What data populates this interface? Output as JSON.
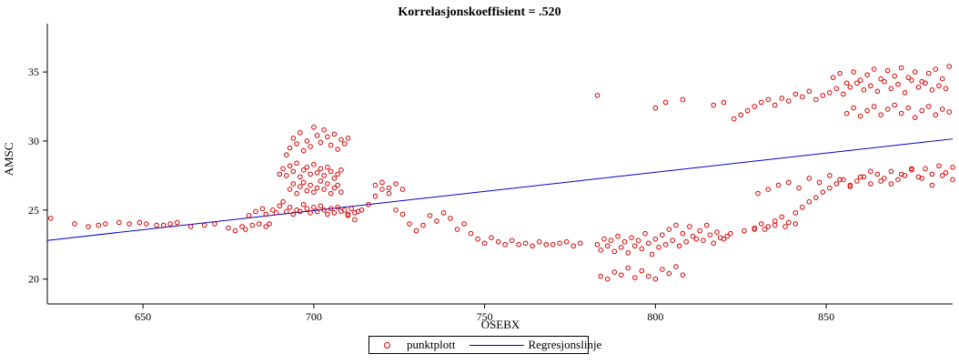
{
  "chart_data": {
    "type": "scatter",
    "title": "Korrelasjonskoeffisient = .520",
    "xlabel": "OSEBX",
    "ylabel": "AMSC",
    "xlim": [
      622,
      887
    ],
    "ylim": [
      18.2,
      38.5
    ],
    "xticks": [
      650,
      700,
      750,
      800,
      850
    ],
    "yticks": [
      20,
      25,
      30,
      35
    ],
    "grid": false,
    "legend_position": "bottom-center",
    "series": [
      {
        "name": "punktplott",
        "kind": "scatter",
        "color": "#d40000",
        "marker": "circle",
        "x": [
          623,
          630,
          634,
          637,
          639,
          643,
          646,
          649,
          651,
          654,
          656,
          658,
          660,
          664,
          668,
          671,
          675,
          677,
          679,
          680,
          682,
          684,
          686,
          687,
          681,
          683,
          685,
          686,
          688,
          689,
          690,
          691,
          692,
          693,
          694,
          695,
          696,
          697,
          698,
          699,
          700,
          701,
          702,
          703,
          704,
          705,
          706,
          707,
          708,
          709,
          710,
          711,
          712,
          713,
          690,
          691,
          692,
          693,
          694,
          695,
          696,
          697,
          698,
          699,
          700,
          701,
          702,
          703,
          704,
          705,
          706,
          707,
          708,
          692,
          693,
          694,
          695,
          696,
          697,
          698,
          699,
          700,
          701,
          702,
          703,
          704,
          705,
          706,
          707,
          708,
          709,
          710,
          693,
          694,
          695,
          696,
          697,
          698,
          699,
          700,
          701,
          702,
          703,
          704,
          705,
          706,
          707,
          708,
          710,
          712,
          714,
          716,
          718,
          720,
          722,
          724,
          726,
          728,
          730,
          732,
          734,
          736,
          738,
          740,
          742,
          744,
          746,
          748,
          750,
          752,
          754,
          756,
          758,
          760,
          762,
          764,
          766,
          768,
          770,
          772,
          774,
          776,
          778,
          718,
          720,
          722,
          724,
          726,
          783,
          784,
          785,
          786,
          787,
          788,
          789,
          790,
          791,
          792,
          793,
          794,
          795,
          796,
          797,
          798,
          799,
          800,
          801,
          802,
          803,
          804,
          805,
          806,
          807,
          808,
          809,
          810,
          811,
          812,
          813,
          814,
          815,
          816,
          817,
          818,
          819,
          820,
          821,
          822,
          784,
          786,
          788,
          790,
          792,
          794,
          796,
          798,
          800,
          802,
          804,
          806,
          808,
          783,
          800,
          803,
          808,
          817,
          820,
          823,
          825,
          827,
          829,
          831,
          833,
          835,
          837,
          839,
          841,
          843,
          845,
          847,
          849,
          851,
          853,
          855,
          857,
          859,
          861,
          863,
          865,
          867,
          869,
          871,
          873,
          875,
          877,
          879,
          881,
          883,
          885,
          852,
          854,
          856,
          858,
          860,
          862,
          864,
          866,
          868,
          870,
          872,
          874,
          876,
          878,
          880,
          882,
          884,
          886,
          856,
          858,
          860,
          862,
          864,
          866,
          868,
          870,
          872,
          874,
          876,
          878,
          880,
          882,
          884,
          886,
          829,
          831,
          833,
          835,
          837,
          839,
          841,
          843,
          845,
          847,
          849,
          851,
          853,
          855,
          857,
          859,
          861,
          863,
          865,
          867,
          869,
          871,
          873,
          875,
          877,
          879,
          881,
          883,
          885,
          887,
          830,
          833,
          836,
          839,
          842,
          845,
          848,
          851,
          854,
          857,
          860,
          863,
          866,
          869,
          872,
          875,
          878,
          881,
          884,
          887,
          826,
          829,
          832,
          835,
          838,
          841
        ],
        "y": [
          24.4,
          24.0,
          23.8,
          23.9,
          24.0,
          24.1,
          24.0,
          24.1,
          24.0,
          23.9,
          23.9,
          24.0,
          24.1,
          23.8,
          23.9,
          24.0,
          23.7,
          23.5,
          23.8,
          23.6,
          23.9,
          24.0,
          23.8,
          24.0,
          24.6,
          24.9,
          25.1,
          24.7,
          25.0,
          24.8,
          25.3,
          25.6,
          24.9,
          25.2,
          24.7,
          25.0,
          24.9,
          25.4,
          25.1,
          24.8,
          25.2,
          24.9,
          25.3,
          25.0,
          24.7,
          25.1,
          24.8,
          25.2,
          24.9,
          25.0,
          24.7,
          25.1,
          24.8,
          24.9,
          27.6,
          28.0,
          27.5,
          28.2,
          27.8,
          28.4,
          27.4,
          27.9,
          28.1,
          27.6,
          28.3,
          27.7,
          28.0,
          27.5,
          28.1,
          27.8,
          27.3,
          27.6,
          27.9,
          29.0,
          29.5,
          30.2,
          29.8,
          30.6,
          29.3,
          30.0,
          29.6,
          31.0,
          30.4,
          29.9,
          30.8,
          30.3,
          29.7,
          30.5,
          29.4,
          30.1,
          29.8,
          30.2,
          26.5,
          26.9,
          26.2,
          26.7,
          27.0,
          26.4,
          26.8,
          26.3,
          26.6,
          27.1,
          26.5,
          26.9,
          26.2,
          26.6,
          26.8,
          26.3,
          24.6,
          24.3,
          25.0,
          25.4,
          26.0,
          26.5,
          26.2,
          25.0,
          24.7,
          24.0,
          23.5,
          23.9,
          24.6,
          24.2,
          24.8,
          24.4,
          23.6,
          24.0,
          23.3,
          22.9,
          22.6,
          23.0,
          22.7,
          22.5,
          22.8,
          22.5,
          22.6,
          22.4,
          22.7,
          22.5,
          22.5,
          22.6,
          22.7,
          22.4,
          22.6,
          26.8,
          27.0,
          26.6,
          26.9,
          26.5,
          22.5,
          22.1,
          22.9,
          22.4,
          22.8,
          22.0,
          23.1,
          22.3,
          22.7,
          21.9,
          23.0,
          22.4,
          22.8,
          22.2,
          23.3,
          22.6,
          21.8,
          22.9,
          22.3,
          23.2,
          22.5,
          23.6,
          22.8,
          23.9,
          22.4,
          23.3,
          22.7,
          23.8,
          23.1,
          22.9,
          23.5,
          22.8,
          23.9,
          23.2,
          22.6,
          23.4,
          23.0,
          22.9,
          23.1,
          23.3,
          20.2,
          20.0,
          20.5,
          20.3,
          20.8,
          20.1,
          20.6,
          20.2,
          20.0,
          20.7,
          20.4,
          20.9,
          20.3,
          33.3,
          32.4,
          32.8,
          33.0,
          32.6,
          32.8,
          31.6,
          31.9,
          32.2,
          32.5,
          32.8,
          33.0,
          32.6,
          33.1,
          32.9,
          33.4,
          33.2,
          33.6,
          33.0,
          33.3,
          33.5,
          33.8,
          33.4,
          33.9,
          34.2,
          33.7,
          34.0,
          33.6,
          34.3,
          33.8,
          34.1,
          33.5,
          34.4,
          33.9,
          34.2,
          33.7,
          34.0,
          33.8,
          34.6,
          34.9,
          34.2,
          35.0,
          34.4,
          34.8,
          35.2,
          34.5,
          35.1,
          34.7,
          35.3,
          34.6,
          35.0,
          34.3,
          34.9,
          35.2,
          34.5,
          35.4,
          32.0,
          32.4,
          31.8,
          32.2,
          32.5,
          31.9,
          32.3,
          32.6,
          32.0,
          32.4,
          31.7,
          32.2,
          32.5,
          31.9,
          32.3,
          32.1,
          23.6,
          24.0,
          23.8,
          24.2,
          24.5,
          24.1,
          24.8,
          25.2,
          25.6,
          25.9,
          26.3,
          26.6,
          26.9,
          27.2,
          26.8,
          27.1,
          27.4,
          26.9,
          27.6,
          27.3,
          27.8,
          27.2,
          27.5,
          27.9,
          27.4,
          28.0,
          27.6,
          28.2,
          27.7,
          28.1,
          26.2,
          26.5,
          26.8,
          27.0,
          26.6,
          27.3,
          27.0,
          27.5,
          27.2,
          26.7,
          27.4,
          27.8,
          27.1,
          26.9,
          27.6,
          28.0,
          27.3,
          26.8,
          27.5,
          27.2,
          23.5,
          23.7,
          23.6,
          23.9,
          23.8,
          24.0
        ]
      },
      {
        "name": "Regresjonslinje",
        "kind": "line",
        "color": "#0000cc",
        "x": [
          622,
          887
        ],
        "y": [
          22.8,
          30.15
        ]
      }
    ]
  }
}
